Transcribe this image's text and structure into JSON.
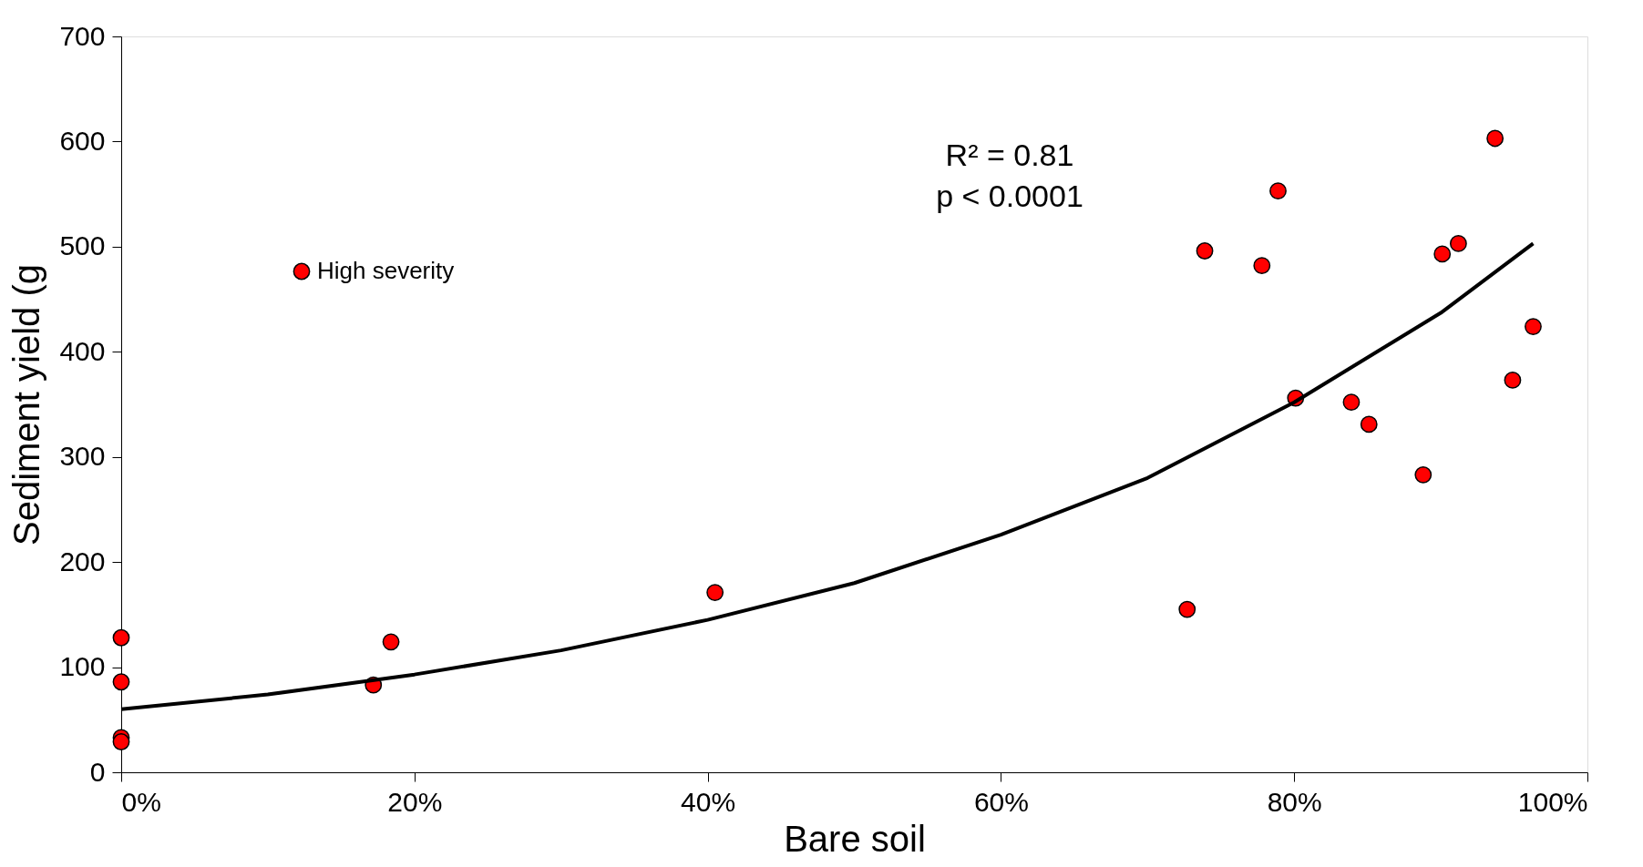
{
  "chart_data": {
    "type": "scatter",
    "xlabel": "Bare soil",
    "ylabel": "Sediment yield (g",
    "xlim": [
      0,
      100
    ],
    "xticks": [
      {
        "value": 0,
        "label": "0%"
      },
      {
        "value": 20,
        "label": "20%"
      },
      {
        "value": 40,
        "label": "40%"
      },
      {
        "value": 60,
        "label": "60%"
      },
      {
        "value": 80,
        "label": "80%"
      },
      {
        "value": 100,
        "label": "100%"
      }
    ],
    "ylim": [
      0,
      700
    ],
    "yticks": [
      0,
      100,
      200,
      300,
      400,
      500,
      600,
      700
    ],
    "grid": false,
    "legend": "top left",
    "annotations": [
      "R² = 0.81",
      "p < 0.0001"
    ],
    "series": [
      {
        "name": "High severity",
        "marker": "circle",
        "color": "#ff0000",
        "x": [
          0,
          0,
          0,
          0,
          17.2,
          18.4,
          40.5,
          72.7,
          73.9,
          77.8,
          78.9,
          80.1,
          83.9,
          85.1,
          88.8,
          90.1,
          91.2,
          93.7,
          94.9,
          96.3
        ],
        "values": [
          128,
          86,
          33,
          29,
          83,
          124,
          171,
          155,
          496,
          482,
          553,
          356,
          352,
          331,
          283,
          493,
          503,
          603,
          373,
          424
        ]
      },
      {
        "type": "line",
        "marker": "none",
        "color": "#000000",
        "line_style": "solid",
        "x": [
          0,
          10,
          20,
          30,
          40,
          50,
          60,
          70,
          80,
          90,
          96.3
        ],
        "values": [
          60,
          74,
          93,
          116,
          145,
          180,
          226,
          280,
          352,
          437,
          503
        ]
      }
    ]
  }
}
